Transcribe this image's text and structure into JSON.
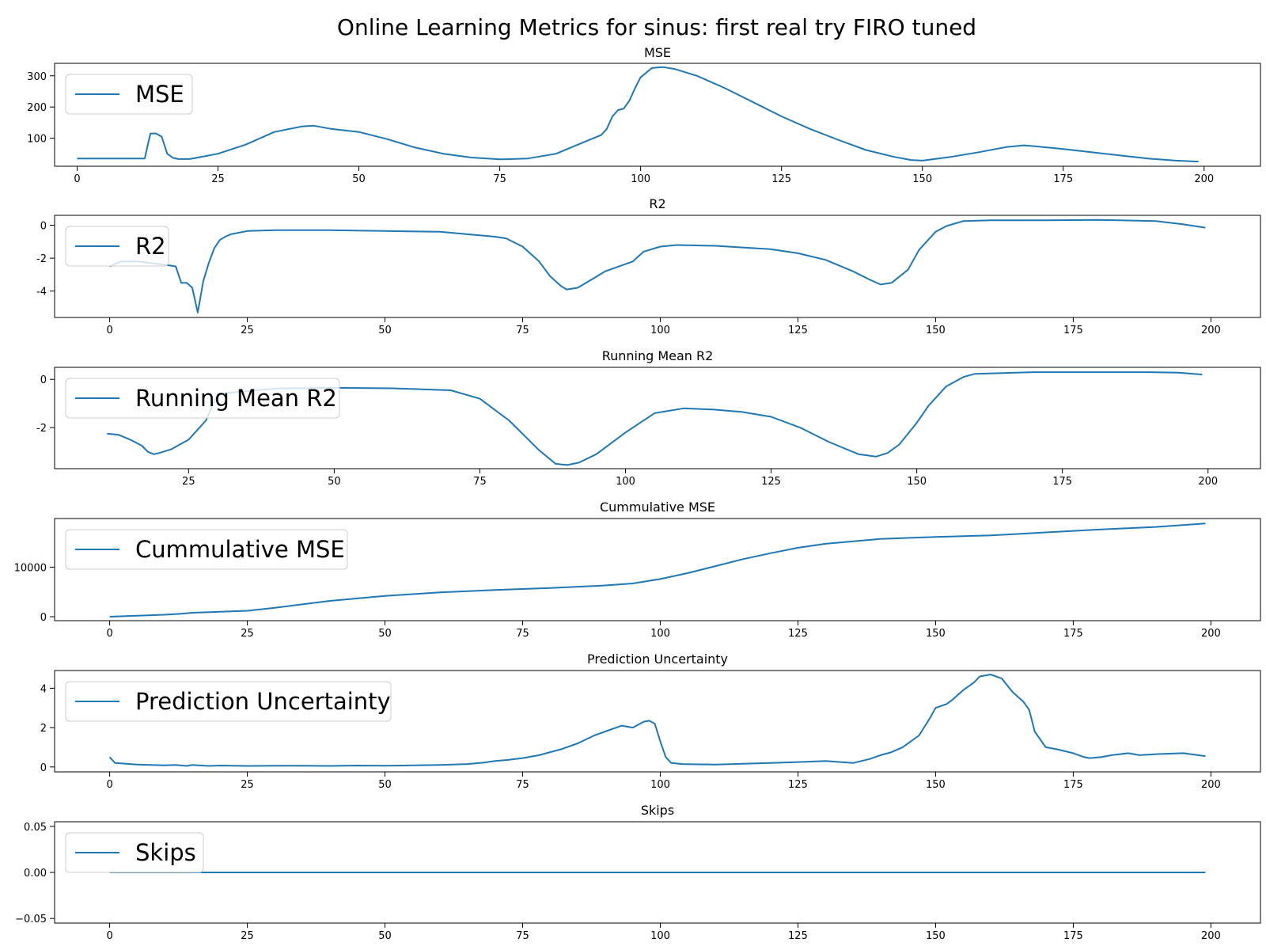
{
  "figure": {
    "title": "Online Learning Metrics for sinus: first real try FIRO tuned",
    "line_color": "#1f77b4"
  },
  "chart_data": [
    {
      "type": "line",
      "title": "MSE",
      "legend": "MSE",
      "legend_position": "upper-left",
      "xlim": [
        -4,
        210
      ],
      "ylim": [
        10,
        340
      ],
      "xticks": [
        0,
        25,
        50,
        75,
        100,
        125,
        150,
        175,
        200
      ],
      "yticks": [
        100,
        200,
        300
      ],
      "x": [
        0,
        12,
        13,
        14,
        15,
        16,
        17,
        18,
        20,
        25,
        30,
        35,
        40,
        42,
        45,
        50,
        55,
        60,
        65,
        70,
        75,
        80,
        85,
        90,
        93,
        94,
        95,
        96,
        97,
        98,
        99,
        100,
        102,
        104,
        106,
        110,
        115,
        120,
        125,
        130,
        135,
        140,
        145,
        148,
        150,
        155,
        160,
        165,
        168,
        170,
        175,
        180,
        185,
        190,
        195,
        199
      ],
      "values": [
        35,
        35,
        115,
        115,
        105,
        50,
        37,
        33,
        33,
        50,
        80,
        120,
        138,
        140,
        130,
        120,
        97,
        70,
        50,
        38,
        32,
        35,
        50,
        88,
        110,
        130,
        170,
        190,
        195,
        220,
        260,
        295,
        325,
        328,
        322,
        300,
        260,
        215,
        170,
        130,
        95,
        62,
        40,
        30,
        28,
        40,
        55,
        72,
        77,
        74,
        65,
        55,
        45,
        35,
        28,
        25
      ]
    },
    {
      "type": "line",
      "title": "R2",
      "legend": "R2",
      "legend_position": "upper-left",
      "xlim": [
        -10,
        209
      ],
      "ylim": [
        -5.6,
        0.6
      ],
      "xticks": [
        0,
        25,
        50,
        75,
        100,
        125,
        150,
        175,
        200
      ],
      "yticks": [
        0,
        -2,
        -4
      ],
      "x": [
        0,
        2,
        5,
        10,
        12,
        13,
        14,
        15,
        16,
        17,
        18,
        19,
        20,
        21,
        22,
        25,
        30,
        40,
        50,
        60,
        70,
        72,
        75,
        78,
        80,
        82,
        83,
        85,
        88,
        90,
        95,
        97,
        100,
        103,
        110,
        120,
        125,
        130,
        135,
        138,
        140,
        142,
        145,
        147,
        150,
        152,
        155,
        160,
        170,
        180,
        190,
        195,
        199
      ],
      "values": [
        -2.5,
        -2.2,
        -2.2,
        -2.4,
        -2.5,
        -3.5,
        -3.5,
        -3.8,
        -5.3,
        -3.4,
        -2.3,
        -1.4,
        -0.9,
        -0.7,
        -0.55,
        -0.35,
        -0.3,
        -0.3,
        -0.35,
        -0.4,
        -0.7,
        -0.8,
        -1.3,
        -2.2,
        -3.1,
        -3.7,
        -3.9,
        -3.8,
        -3.2,
        -2.8,
        -2.2,
        -1.6,
        -1.3,
        -1.2,
        -1.25,
        -1.45,
        -1.7,
        -2.1,
        -2.8,
        -3.3,
        -3.6,
        -3.5,
        -2.7,
        -1.5,
        -0.4,
        -0.05,
        0.25,
        0.3,
        0.3,
        0.32,
        0.25,
        0.05,
        -0.15
      ]
    },
    {
      "type": "line",
      "title": "Running Mean R2",
      "legend": "Running Mean R2",
      "legend_position": "upper-left",
      "xlim": [
        2,
        209
      ],
      "ylim": [
        -3.7,
        0.5
      ],
      "xticks": [
        25,
        50,
        75,
        100,
        125,
        150,
        175,
        200
      ],
      "yticks": [
        0,
        -2
      ],
      "x": [
        11,
        13,
        15,
        17,
        18,
        19,
        20,
        22,
        25,
        28,
        30,
        40,
        50,
        60,
        70,
        75,
        80,
        85,
        88,
        90,
        92,
        95,
        100,
        105,
        110,
        115,
        120,
        125,
        130,
        135,
        140,
        143,
        145,
        147,
        150,
        152,
        155,
        158,
        160,
        170,
        180,
        190,
        195,
        199
      ],
      "values": [
        -2.25,
        -2.3,
        -2.5,
        -2.75,
        -3.0,
        -3.1,
        -3.05,
        -2.9,
        -2.5,
        -1.7,
        -0.6,
        -0.38,
        -0.35,
        -0.37,
        -0.45,
        -0.8,
        -1.7,
        -2.9,
        -3.5,
        -3.55,
        -3.45,
        -3.1,
        -2.2,
        -1.4,
        -1.2,
        -1.25,
        -1.35,
        -1.55,
        -2.0,
        -2.6,
        -3.1,
        -3.2,
        -3.05,
        -2.7,
        -1.8,
        -1.1,
        -0.3,
        0.1,
        0.23,
        0.3,
        0.3,
        0.3,
        0.28,
        0.2
      ]
    },
    {
      "type": "line",
      "title": "Cummulative MSE",
      "legend": "Cummulative MSE",
      "legend_position": "upper-left",
      "xlim": [
        -10,
        209
      ],
      "ylim": [
        -800,
        19800
      ],
      "xticks": [
        0,
        25,
        50,
        75,
        100,
        125,
        150,
        175,
        200
      ],
      "yticks": [
        0,
        10000
      ],
      "x": [
        0,
        10,
        13,
        15,
        20,
        25,
        30,
        40,
        50,
        60,
        70,
        80,
        90,
        95,
        100,
        105,
        110,
        115,
        120,
        125,
        130,
        140,
        150,
        160,
        170,
        180,
        190,
        199
      ],
      "values": [
        0,
        400,
        600,
        800,
        1000,
        1200,
        1800,
        3200,
        4200,
        4900,
        5400,
        5800,
        6300,
        6700,
        7600,
        8800,
        10200,
        11600,
        12800,
        13900,
        14700,
        15700,
        16100,
        16400,
        17000,
        17600,
        18100,
        18800
      ]
    },
    {
      "type": "line",
      "title": "Prediction Uncertainty",
      "legend": "Prediction Uncertainty",
      "legend_position": "upper-left",
      "xlim": [
        -10,
        209
      ],
      "ylim": [
        -0.25,
        4.9
      ],
      "xticks": [
        0,
        25,
        50,
        75,
        100,
        125,
        150,
        175,
        200
      ],
      "yticks": [
        0,
        2,
        4
      ],
      "x": [
        0,
        1,
        5,
        10,
        12,
        14,
        15,
        18,
        20,
        25,
        30,
        35,
        40,
        45,
        50,
        55,
        60,
        65,
        68,
        70,
        72,
        75,
        78,
        80,
        82,
        85,
        88,
        90,
        92,
        93,
        95,
        97,
        98,
        99,
        100,
        101,
        102,
        104,
        110,
        120,
        125,
        130,
        135,
        138,
        140,
        142,
        144,
        145,
        147,
        149,
        150,
        152,
        153,
        155,
        157,
        158,
        160,
        162,
        164,
        166,
        167,
        168,
        170,
        172,
        175,
        177,
        178,
        180,
        182,
        185,
        187,
        190,
        195,
        199
      ],
      "values": [
        0.5,
        0.2,
        0.12,
        0.08,
        0.1,
        0.05,
        0.1,
        0.05,
        0.07,
        0.05,
        0.06,
        0.06,
        0.05,
        0.07,
        0.06,
        0.08,
        0.1,
        0.15,
        0.22,
        0.3,
        0.35,
        0.45,
        0.6,
        0.75,
        0.9,
        1.2,
        1.6,
        1.8,
        2.0,
        2.1,
        2.0,
        2.3,
        2.35,
        2.2,
        1.3,
        0.5,
        0.2,
        0.15,
        0.12,
        0.2,
        0.25,
        0.3,
        0.2,
        0.4,
        0.6,
        0.75,
        1.0,
        1.2,
        1.6,
        2.5,
        3.0,
        3.2,
        3.4,
        3.9,
        4.3,
        4.6,
        4.7,
        4.5,
        3.8,
        3.3,
        2.9,
        1.8,
        1.0,
        0.9,
        0.7,
        0.5,
        0.45,
        0.5,
        0.6,
        0.7,
        0.6,
        0.65,
        0.7,
        0.55
      ]
    },
    {
      "type": "line",
      "title": "Skips",
      "legend": "Skips",
      "legend_position": "upper-left",
      "xlim": [
        -10,
        209
      ],
      "ylim": [
        -0.055,
        0.055
      ],
      "xticks": [
        0,
        25,
        50,
        75,
        100,
        125,
        150,
        175,
        200
      ],
      "yticks": [
        0.05,
        0.0,
        -0.05
      ],
      "ytick_labels": [
        "0.05",
        "0.00",
        "−0.05"
      ],
      "x": [
        0,
        199
      ],
      "values": [
        0,
        0
      ]
    }
  ]
}
